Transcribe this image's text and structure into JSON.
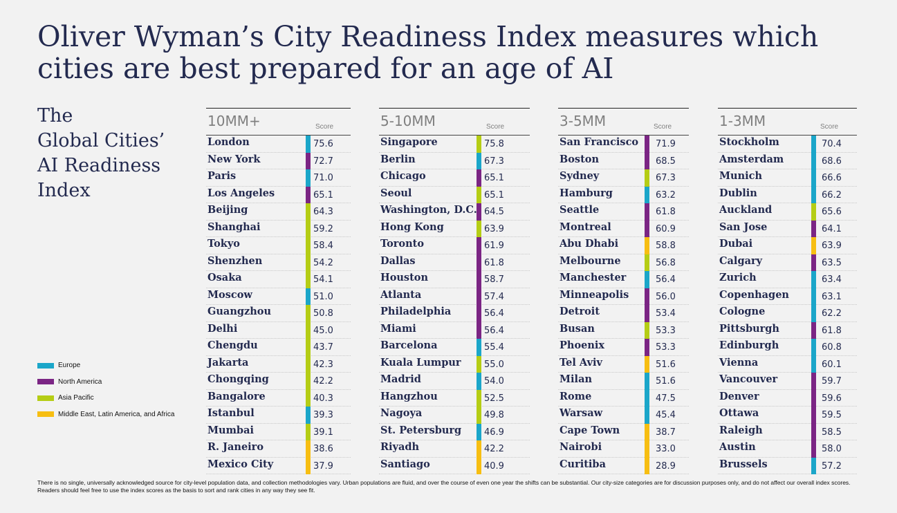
{
  "title_line1": "Oliver Wyman’s City Readiness Index measures which",
  "title_line2": "cities are best prepared for an age of AI",
  "subtitle_lines": [
    "The",
    "Global Cities’",
    "AI Readiness",
    "Index"
  ],
  "score_label": "Score",
  "legend": [
    {
      "label": "Europe",
      "color": "#1ba6c9"
    },
    {
      "label": "North America",
      "color": "#7b2584"
    },
    {
      "label": "Asia Pacific",
      "color": "#b5cd15"
    },
    {
      "label": "Middle East, Latin America, and Africa",
      "color": "#f7be12"
    }
  ],
  "footnote": "There is no single, universally acknowledged source for city-level population data, and collection methodologies vary. Urban populations are fluid, and over the course of even one year the shifts can be substantial. Our city-size categories are for discussion purposes only, and do not affect our overall index scores. Readers should feel free to use the index scores as the basis to sort and rank cities in any way they see fit.",
  "chart_data": {
    "type": "table",
    "value_column": "Score",
    "groups": [
      {
        "name": "10MM+",
        "cities": [
          {
            "city": "London",
            "score": 75.6,
            "region": "Europe"
          },
          {
            "city": "New York",
            "score": 72.7,
            "region": "North America"
          },
          {
            "city": "Paris",
            "score": 71.0,
            "region": "Europe"
          },
          {
            "city": "Los Angeles",
            "score": 65.1,
            "region": "North America"
          },
          {
            "city": "Beijing",
            "score": 64.3,
            "region": "Asia Pacific"
          },
          {
            "city": "Shanghai",
            "score": 59.2,
            "region": "Asia Pacific"
          },
          {
            "city": "Tokyo",
            "score": 58.4,
            "region": "Asia Pacific"
          },
          {
            "city": "Shenzhen",
            "score": 54.2,
            "region": "Asia Pacific"
          },
          {
            "city": "Osaka",
            "score": 54.1,
            "region": "Asia Pacific"
          },
          {
            "city": "Moscow",
            "score": 51.0,
            "region": "Europe"
          },
          {
            "city": "Guangzhou",
            "score": 50.8,
            "region": "Asia Pacific"
          },
          {
            "city": "Delhi",
            "score": 45.0,
            "region": "Asia Pacific"
          },
          {
            "city": "Chengdu",
            "score": 43.7,
            "region": "Asia Pacific"
          },
          {
            "city": "Jakarta",
            "score": 42.3,
            "region": "Asia Pacific"
          },
          {
            "city": "Chongqing",
            "score": 42.2,
            "region": "Asia Pacific"
          },
          {
            "city": "Bangalore",
            "score": 40.3,
            "region": "Asia Pacific"
          },
          {
            "city": "Istanbul",
            "score": 39.3,
            "region": "Europe"
          },
          {
            "city": "Mumbai",
            "score": 39.1,
            "region": "Asia Pacific"
          },
          {
            "city": "R. Janeiro",
            "score": 38.6,
            "region": "Middle East, Latin America, and Africa"
          },
          {
            "city": "Mexico City",
            "score": 37.9,
            "region": "Middle East, Latin America, and Africa"
          }
        ]
      },
      {
        "name": "5-10MM",
        "cities": [
          {
            "city": "Singapore",
            "score": 75.8,
            "region": "Asia Pacific"
          },
          {
            "city": "Berlin",
            "score": 67.3,
            "region": "Europe"
          },
          {
            "city": "Chicago",
            "score": 65.1,
            "region": "North America"
          },
          {
            "city": "Seoul",
            "score": 65.1,
            "region": "Asia Pacific"
          },
          {
            "city": "Washington, D.C.",
            "score": 64.5,
            "region": "North America"
          },
          {
            "city": "Hong Kong",
            "score": 63.9,
            "region": "Asia Pacific"
          },
          {
            "city": "Toronto",
            "score": 61.9,
            "region": "North America"
          },
          {
            "city": "Dallas",
            "score": 61.8,
            "region": "North America"
          },
          {
            "city": "Houston",
            "score": 58.7,
            "region": "North America"
          },
          {
            "city": "Atlanta",
            "score": 57.4,
            "region": "North America"
          },
          {
            "city": "Philadelphia",
            "score": 56.4,
            "region": "North America"
          },
          {
            "city": "Miami",
            "score": 56.4,
            "region": "North America"
          },
          {
            "city": "Barcelona",
            "score": 55.4,
            "region": "Europe"
          },
          {
            "city": "Kuala Lumpur",
            "score": 55.0,
            "region": "Asia Pacific"
          },
          {
            "city": "Madrid",
            "score": 54.0,
            "region": "Europe"
          },
          {
            "city": "Hangzhou",
            "score": 52.5,
            "region": "Asia Pacific"
          },
          {
            "city": "Nagoya",
            "score": 49.8,
            "region": "Asia Pacific"
          },
          {
            "city": "St. Petersburg",
            "score": 46.9,
            "region": "Europe"
          },
          {
            "city": "Riyadh",
            "score": 42.2,
            "region": "Middle East, Latin America, and Africa"
          },
          {
            "city": "Santiago",
            "score": 40.9,
            "region": "Middle East, Latin America, and Africa"
          }
        ]
      },
      {
        "name": "3-5MM",
        "cities": [
          {
            "city": "San Francisco",
            "score": 71.9,
            "region": "North America"
          },
          {
            "city": "Boston",
            "score": 68.5,
            "region": "North America"
          },
          {
            "city": "Sydney",
            "score": 67.3,
            "region": "Asia Pacific"
          },
          {
            "city": "Hamburg",
            "score": 63.2,
            "region": "Europe"
          },
          {
            "city": "Seattle",
            "score": 61.8,
            "region": "North America"
          },
          {
            "city": "Montreal",
            "score": 60.9,
            "region": "North America"
          },
          {
            "city": "Abu Dhabi",
            "score": 58.8,
            "region": "Middle East, Latin America, and Africa"
          },
          {
            "city": "Melbourne",
            "score": 56.8,
            "region": "Asia Pacific"
          },
          {
            "city": "Manchester",
            "score": 56.4,
            "region": "Europe"
          },
          {
            "city": "Minneapolis",
            "score": 56.0,
            "region": "North America"
          },
          {
            "city": "Detroit",
            "score": 53.4,
            "region": "North America"
          },
          {
            "city": "Busan",
            "score": 53.3,
            "region": "Asia Pacific"
          },
          {
            "city": "Phoenix",
            "score": 53.3,
            "region": "North America"
          },
          {
            "city": "Tel Aviv",
            "score": 51.6,
            "region": "Middle East, Latin America, and Africa"
          },
          {
            "city": "Milan",
            "score": 51.6,
            "region": "Europe"
          },
          {
            "city": "Rome",
            "score": 47.5,
            "region": "Europe"
          },
          {
            "city": "Warsaw",
            "score": 45.4,
            "region": "Europe"
          },
          {
            "city": "Cape Town",
            "score": 38.7,
            "region": "Middle East, Latin America, and Africa"
          },
          {
            "city": "Nairobi",
            "score": 33.0,
            "region": "Middle East, Latin America, and Africa"
          },
          {
            "city": "Curitiba",
            "score": 28.9,
            "region": "Middle East, Latin America, and Africa"
          }
        ]
      },
      {
        "name": "1-3MM",
        "cities": [
          {
            "city": "Stockholm",
            "score": 70.4,
            "region": "Europe"
          },
          {
            "city": "Amsterdam",
            "score": 68.6,
            "region": "Europe"
          },
          {
            "city": "Munich",
            "score": 66.6,
            "region": "Europe"
          },
          {
            "city": "Dublin",
            "score": 66.2,
            "region": "Europe"
          },
          {
            "city": "Auckland",
            "score": 65.6,
            "region": "Asia Pacific"
          },
          {
            "city": "San Jose",
            "score": 64.1,
            "region": "North America"
          },
          {
            "city": "Dubai",
            "score": 63.9,
            "region": "Middle East, Latin America, and Africa"
          },
          {
            "city": "Calgary",
            "score": 63.5,
            "region": "North America"
          },
          {
            "city": "Zurich",
            "score": 63.4,
            "region": "Europe"
          },
          {
            "city": "Copenhagen",
            "score": 63.1,
            "region": "Europe"
          },
          {
            "city": "Cologne",
            "score": 62.2,
            "region": "Europe"
          },
          {
            "city": "Pittsburgh",
            "score": 61.8,
            "region": "North America"
          },
          {
            "city": "Edinburgh",
            "score": 60.8,
            "region": "Europe"
          },
          {
            "city": "Vienna",
            "score": 60.1,
            "region": "Europe"
          },
          {
            "city": "Vancouver",
            "score": 59.7,
            "region": "North America"
          },
          {
            "city": "Denver",
            "score": 59.6,
            "region": "North America"
          },
          {
            "city": "Ottawa",
            "score": 59.5,
            "region": "North America"
          },
          {
            "city": "Raleigh",
            "score": 58.5,
            "region": "North America"
          },
          {
            "city": "Austin",
            "score": 58.0,
            "region": "North America"
          },
          {
            "city": "Brussels",
            "score": 57.2,
            "region": "Europe"
          }
        ]
      }
    ]
  }
}
